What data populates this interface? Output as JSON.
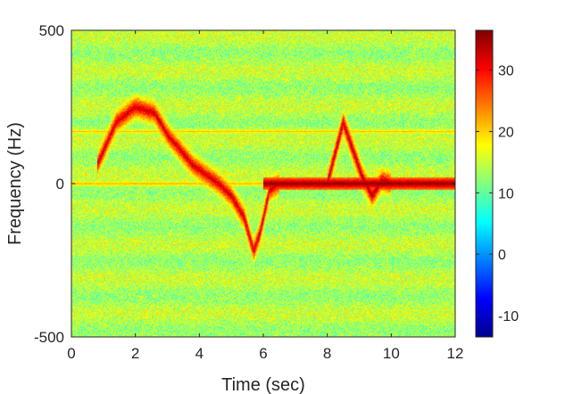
{
  "chart_data": {
    "type": "heatmap",
    "title": "",
    "xlabel": "Time (sec)",
    "ylabel": "Frequency (Hz)",
    "xlim": [
      0,
      12
    ],
    "ylim": [
      -500,
      500
    ],
    "xticks": [
      "0",
      "2",
      "4",
      "6",
      "8",
      "10",
      "12"
    ],
    "yticks": [
      "-500",
      "0",
      "500"
    ],
    "colorbar": {
      "colormap": "jet",
      "range": [
        -13.5,
        36.5
      ],
      "ticks": [
        "-10",
        "0",
        "10",
        "20",
        "30"
      ]
    },
    "background_level": 14,
    "features": [
      {
        "name": "dc-line",
        "freq_hz": 0,
        "level": 22,
        "t_start": 0,
        "t_end": 8,
        "note": ""
      },
      {
        "name": "dc-line-strong",
        "freq_hz": 0,
        "level": 36,
        "t_start": 6,
        "t_end": 12
      },
      {
        "name": "harmonic-line",
        "freq_hz": 170,
        "level": 21,
        "t_start": 0,
        "t_end": 12
      },
      {
        "name": "doppler-track-1",
        "level": 33,
        "points": [
          [
            0.8,
            60
          ],
          [
            1.4,
            200
          ],
          [
            2.0,
            250
          ],
          [
            2.6,
            230
          ],
          [
            3.0,
            160
          ],
          [
            3.4,
            110
          ],
          [
            3.8,
            60
          ],
          [
            4.2,
            30
          ],
          [
            4.6,
            0
          ],
          [
            5.0,
            -40
          ],
          [
            5.4,
            -110
          ],
          [
            5.7,
            -220
          ],
          [
            5.9,
            -160
          ],
          [
            6.2,
            -20
          ],
          [
            6.5,
            0
          ]
        ]
      },
      {
        "name": "doppler-track-2",
        "level": 34,
        "points": [
          [
            8.0,
            0
          ],
          [
            8.3,
            120
          ],
          [
            8.5,
            200
          ],
          [
            8.8,
            110
          ],
          [
            9.1,
            20
          ],
          [
            9.4,
            -40
          ],
          [
            9.7,
            10
          ],
          [
            10.0,
            0
          ]
        ]
      }
    ]
  }
}
